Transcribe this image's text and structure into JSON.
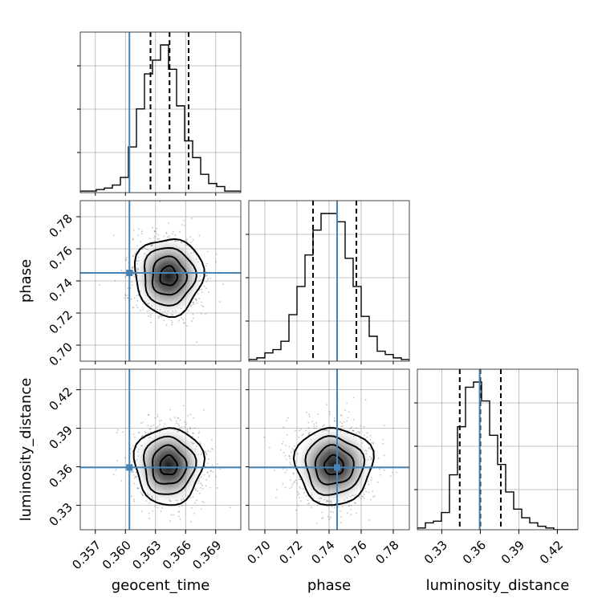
{
  "chart_data": {
    "type": "corner",
    "parameters": [
      {
        "name": "geocent_time",
        "label": "geocent_time",
        "range": [
          0.3555,
          0.3715
        ],
        "ticks": [
          0.357,
          0.36,
          0.363,
          0.366,
          0.369
        ],
        "tick_labels": [
          "0.357",
          "0.360",
          "0.363",
          "0.366",
          "0.369"
        ],
        "truth": 0.3604,
        "quantiles": [
          0.3625,
          0.3644,
          0.3663
        ],
        "mean": 0.3643,
        "sd": 0.0017
      },
      {
        "name": "phase",
        "label": "phase",
        "range": [
          0.69,
          0.79
        ],
        "ticks": [
          0.7,
          0.72,
          0.74,
          0.76,
          0.78
        ],
        "tick_labels": [
          "0.70",
          "0.72",
          "0.74",
          "0.76",
          "0.78"
        ],
        "truth": 0.745,
        "quantiles": [
          0.73,
          0.745,
          0.757
        ],
        "mean": 0.743,
        "sd": 0.012
      },
      {
        "name": "luminosity_distance",
        "label": "luminosity_distance",
        "range": [
          0.311,
          0.436
        ],
        "ticks": [
          0.33,
          0.36,
          0.39,
          0.42
        ],
        "tick_labels": [
          "0.33",
          "0.36",
          "0.39",
          "0.42"
        ],
        "truth": 0.3595,
        "quantiles": [
          0.344,
          0.36,
          0.376
        ],
        "mean": 0.361,
        "sd": 0.015
      }
    ],
    "histograms": [
      {
        "param": "geocent_time",
        "counts": [
          1,
          1,
          2,
          3,
          5,
          10,
          30,
          55,
          78,
          87,
          97,
          81,
          57,
          34,
          23,
          12,
          6,
          4,
          1,
          1
        ]
      },
      {
        "param": "phase",
        "counts": [
          1,
          2,
          5,
          7,
          12,
          28,
          45,
          64,
          79,
          89,
          89,
          84,
          62,
          45,
          27,
          15,
          6,
          4,
          2,
          1
        ]
      },
      {
        "param": "luminosity_distance",
        "counts": [
          1,
          4,
          5,
          10,
          32,
          60,
          83,
          86,
          75,
          55,
          38,
          22,
          12,
          7,
          4,
          2,
          1,
          0,
          0,
          0
        ]
      }
    ],
    "contour_levels_sigma": [
      0.5,
      1.0,
      1.5,
      2.0
    ]
  }
}
